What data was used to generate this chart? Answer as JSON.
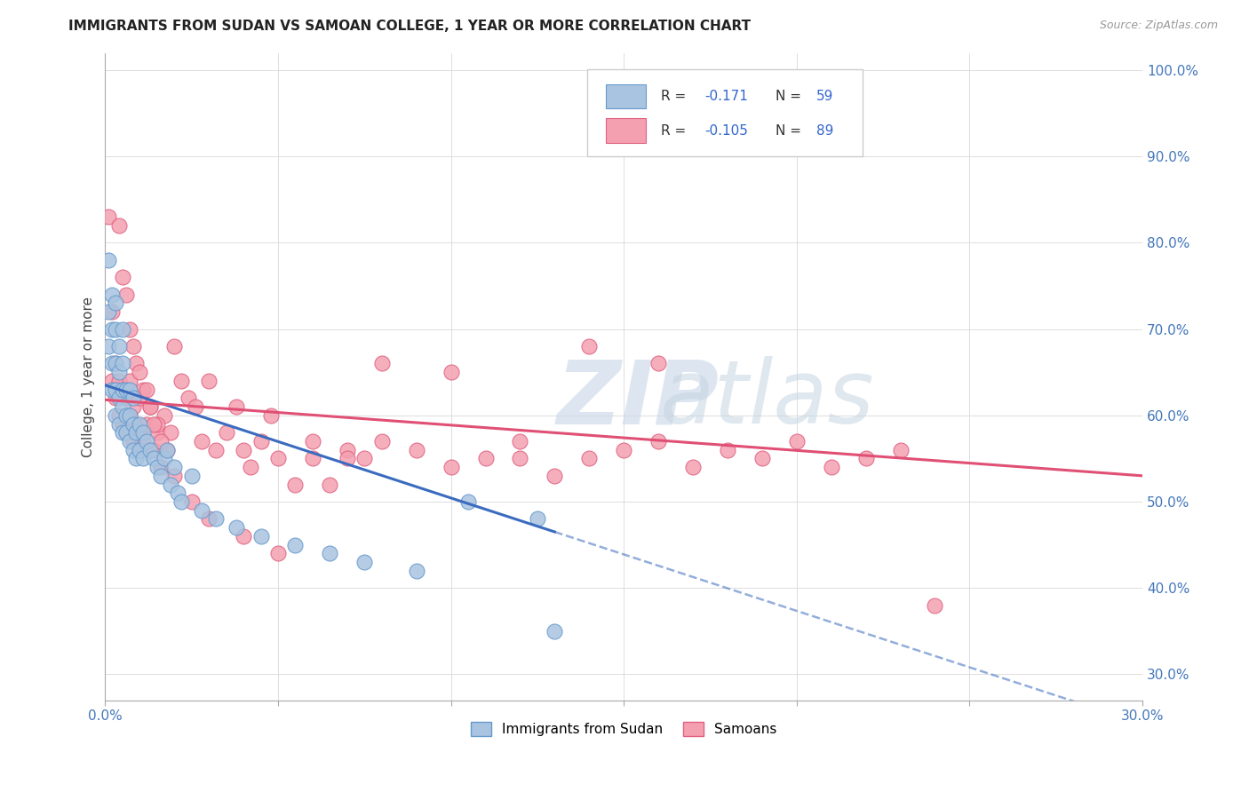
{
  "title": "IMMIGRANTS FROM SUDAN VS SAMOAN COLLEGE, 1 YEAR OR MORE CORRELATION CHART",
  "source": "Source: ZipAtlas.com",
  "ylabel": "College, 1 year or more",
  "xlim": [
    0.0,
    0.3
  ],
  "ylim": [
    0.27,
    1.02
  ],
  "blue_color": "#a8c4e0",
  "pink_color": "#f4a0b0",
  "blue_edge": "#6699cc",
  "pink_edge": "#e06080",
  "trend_blue": "#3a6bbf",
  "trend_pink": "#e05075",
  "legend_blue_label": "Immigrants from Sudan",
  "legend_pink_label": "Samoans",
  "blue_x": [
    0.001,
    0.001,
    0.001,
    0.002,
    0.002,
    0.002,
    0.002,
    0.003,
    0.003,
    0.003,
    0.003,
    0.003,
    0.004,
    0.004,
    0.004,
    0.004,
    0.005,
    0.005,
    0.005,
    0.005,
    0.005,
    0.006,
    0.006,
    0.006,
    0.007,
    0.007,
    0.007,
    0.008,
    0.008,
    0.008,
    0.009,
    0.009,
    0.01,
    0.01,
    0.011,
    0.011,
    0.012,
    0.013,
    0.014,
    0.015,
    0.016,
    0.017,
    0.018,
    0.019,
    0.02,
    0.021,
    0.022,
    0.025,
    0.028,
    0.032,
    0.038,
    0.045,
    0.055,
    0.065,
    0.075,
    0.09,
    0.105,
    0.125,
    0.13
  ],
  "blue_y": [
    0.68,
    0.72,
    0.78,
    0.63,
    0.66,
    0.7,
    0.74,
    0.6,
    0.63,
    0.66,
    0.7,
    0.73,
    0.59,
    0.62,
    0.65,
    0.68,
    0.58,
    0.61,
    0.63,
    0.66,
    0.7,
    0.58,
    0.6,
    0.63,
    0.57,
    0.6,
    0.63,
    0.56,
    0.59,
    0.62,
    0.55,
    0.58,
    0.56,
    0.59,
    0.55,
    0.58,
    0.57,
    0.56,
    0.55,
    0.54,
    0.53,
    0.55,
    0.56,
    0.52,
    0.54,
    0.51,
    0.5,
    0.53,
    0.49,
    0.48,
    0.47,
    0.46,
    0.45,
    0.44,
    0.43,
    0.42,
    0.5,
    0.48,
    0.35
  ],
  "pink_x": [
    0.001,
    0.002,
    0.002,
    0.003,
    0.003,
    0.004,
    0.004,
    0.005,
    0.005,
    0.006,
    0.006,
    0.007,
    0.007,
    0.008,
    0.008,
    0.009,
    0.01,
    0.01,
    0.011,
    0.012,
    0.013,
    0.014,
    0.015,
    0.016,
    0.017,
    0.018,
    0.019,
    0.02,
    0.022,
    0.024,
    0.026,
    0.028,
    0.03,
    0.032,
    0.035,
    0.038,
    0.04,
    0.042,
    0.045,
    0.048,
    0.05,
    0.055,
    0.06,
    0.065,
    0.07,
    0.075,
    0.08,
    0.09,
    0.1,
    0.11,
    0.12,
    0.13,
    0.14,
    0.15,
    0.16,
    0.17,
    0.18,
    0.19,
    0.2,
    0.21,
    0.22,
    0.23,
    0.24,
    0.005,
    0.007,
    0.009,
    0.011,
    0.013,
    0.015,
    0.004,
    0.006,
    0.008,
    0.01,
    0.012,
    0.014,
    0.016,
    0.02,
    0.025,
    0.03,
    0.04,
    0.05,
    0.06,
    0.07,
    0.08,
    0.1,
    0.12,
    0.14,
    0.16
  ],
  "pink_y": [
    0.83,
    0.64,
    0.72,
    0.62,
    0.66,
    0.6,
    0.64,
    0.59,
    0.63,
    0.58,
    0.62,
    0.6,
    0.64,
    0.57,
    0.61,
    0.59,
    0.58,
    0.62,
    0.57,
    0.59,
    0.61,
    0.56,
    0.58,
    0.54,
    0.6,
    0.56,
    0.58,
    0.68,
    0.64,
    0.62,
    0.61,
    0.57,
    0.64,
    0.56,
    0.58,
    0.61,
    0.56,
    0.54,
    0.57,
    0.6,
    0.55,
    0.52,
    0.57,
    0.52,
    0.56,
    0.55,
    0.57,
    0.56,
    0.54,
    0.55,
    0.57,
    0.53,
    0.55,
    0.56,
    0.57,
    0.54,
    0.56,
    0.55,
    0.57,
    0.54,
    0.55,
    0.56,
    0.38,
    0.76,
    0.7,
    0.66,
    0.63,
    0.61,
    0.59,
    0.82,
    0.74,
    0.68,
    0.65,
    0.63,
    0.59,
    0.57,
    0.53,
    0.5,
    0.48,
    0.46,
    0.44,
    0.55,
    0.55,
    0.66,
    0.65,
    0.55,
    0.68,
    0.66
  ],
  "blue_trend_x0": 0.0,
  "blue_trend_y0": 0.635,
  "blue_trend_x1": 0.13,
  "blue_trend_y1": 0.465,
  "pink_trend_x0": 0.0,
  "pink_trend_y0": 0.618,
  "pink_trend_x1": 0.3,
  "pink_trend_y1": 0.53
}
